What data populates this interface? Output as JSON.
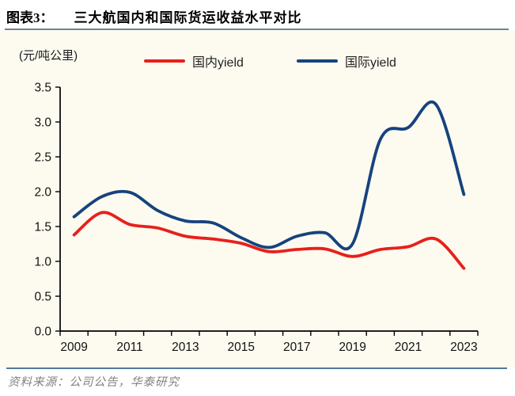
{
  "figure": {
    "label": "图表3：",
    "title": "三大航国内和国际货运收益水平对比",
    "unit_label": "(元/吨公里)",
    "source": "资料来源：公司公告，华泰研究"
  },
  "legend": [
    {
      "label": "国内yield",
      "color": "#e8201a"
    },
    {
      "label": "国际yield",
      "color": "#16437e"
    }
  ],
  "chart_data": {
    "type": "line",
    "title": "三大航国内和国际货运收益水平对比",
    "ylabel": "(元/吨公里)",
    "xlabel": "",
    "x": [
      2009,
      2010,
      2011,
      2012,
      2013,
      2014,
      2015,
      2016,
      2017,
      2018,
      2019,
      2020,
      2021,
      2022,
      2023
    ],
    "series": [
      {
        "name": "国内yield",
        "color": "#e8201a",
        "values": [
          1.38,
          1.7,
          1.53,
          1.48,
          1.36,
          1.32,
          1.26,
          1.14,
          1.17,
          1.18,
          1.07,
          1.17,
          1.21,
          1.32,
          0.9
        ]
      },
      {
        "name": "国际yield",
        "color": "#16437e",
        "values": [
          1.64,
          1.93,
          1.99,
          1.73,
          1.58,
          1.55,
          1.34,
          1.2,
          1.36,
          1.41,
          1.25,
          2.75,
          2.92,
          3.25,
          1.96
        ]
      }
    ],
    "ylim": [
      0,
      3.5
    ],
    "ytick_step": 0.5,
    "xtick_label_years": [
      2009,
      2011,
      2013,
      2015,
      2017,
      2019,
      2021,
      2023
    ],
    "grid": false,
    "legend_position": "top",
    "smooth": true
  },
  "colors": {
    "panel_background": "#fdfbf0",
    "axis": "#000000",
    "top_rule": "#6e8494",
    "bottom_rule": "#527a9b",
    "source_text": "#828282"
  }
}
